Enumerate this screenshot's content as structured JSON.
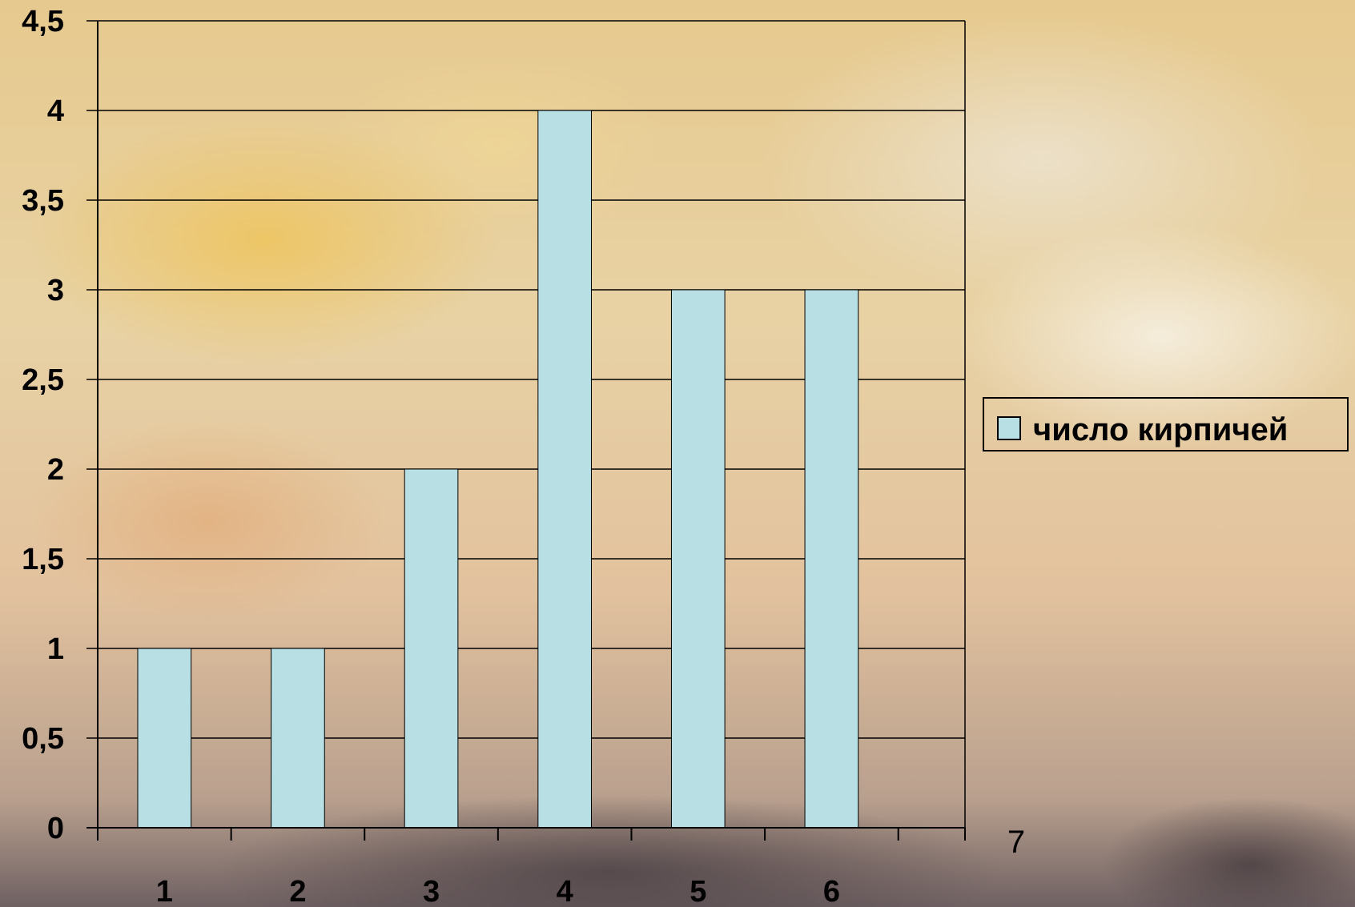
{
  "chart_data": {
    "type": "bar",
    "categories": [
      "1",
      "2",
      "3",
      "4",
      "5",
      "6"
    ],
    "series": [
      {
        "name": "число кирпичей",
        "values": [
          1,
          1,
          2,
          4,
          3,
          3
        ],
        "color": "#b8e0e4"
      }
    ],
    "y_ticks": [
      "0",
      "0,5",
      "1",
      "1,5",
      "2",
      "2,5",
      "3",
      "3,5",
      "4",
      "4,5"
    ],
    "ylim": [
      0,
      4.5
    ],
    "grid": true,
    "legend": {
      "position": "right",
      "label": "число кирпичей"
    },
    "extra_x_label": "7"
  }
}
